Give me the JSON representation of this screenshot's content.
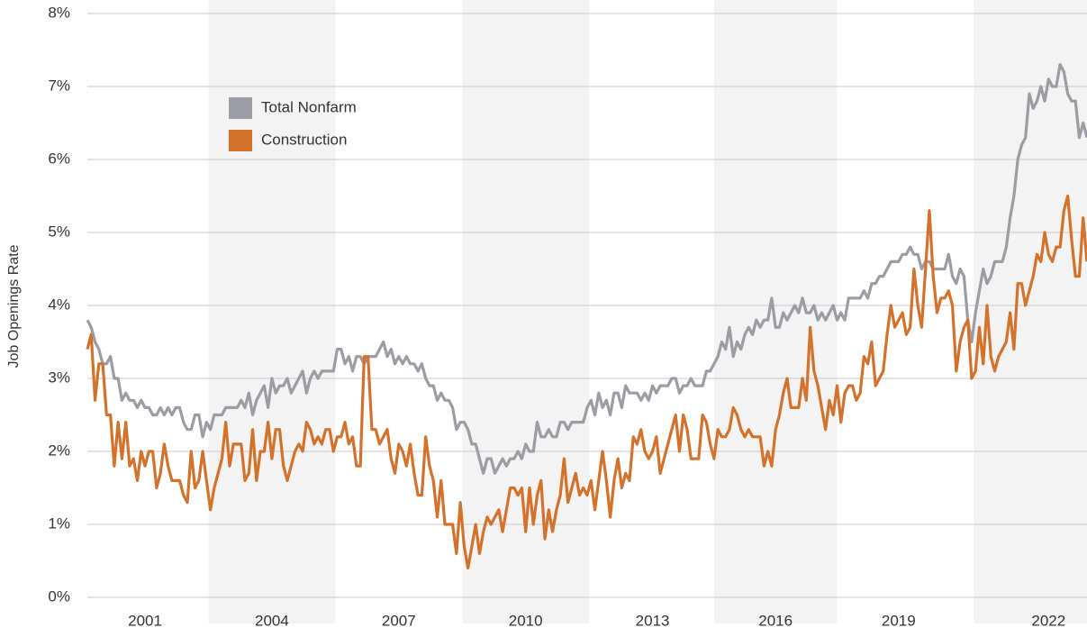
{
  "chart_data": {
    "type": "line",
    "ylabel": "Job Openings Rate",
    "categories": [
      null,
      null,
      null,
      null,
      null,
      null,
      null,
      null,
      null,
      null,
      null,
      null,
      null,
      null,
      null,
      "2001",
      null,
      null,
      null,
      null,
      null,
      null,
      null,
      null,
      null,
      null,
      null,
      null,
      null,
      null,
      null,
      null,
      null,
      null,
      null,
      null,
      null,
      null,
      null,
      null,
      null,
      null,
      null,
      null,
      null,
      null,
      null,
      null,
      "2004",
      null,
      null,
      null,
      null,
      null,
      null,
      null,
      null,
      null,
      null,
      null,
      null,
      null,
      null,
      null,
      null,
      null,
      null,
      null,
      null,
      null,
      null,
      null,
      null,
      null,
      null,
      null,
      null,
      null,
      null,
      null,
      null,
      "2007",
      null,
      null,
      null,
      null,
      null,
      null,
      null,
      null,
      null,
      null,
      null,
      null,
      null,
      null,
      null,
      null,
      null,
      null,
      null,
      null,
      null,
      null,
      null,
      null,
      null,
      null,
      null,
      null,
      null,
      null,
      null,
      null,
      "2010",
      null,
      null,
      null,
      null,
      null,
      null,
      null,
      null,
      null,
      null,
      null,
      null,
      null,
      null,
      null,
      null,
      null,
      null,
      null,
      null,
      null,
      null,
      null,
      null,
      null,
      null,
      null,
      null,
      null,
      null,
      null,
      null,
      "2013",
      null,
      null,
      null,
      null,
      null,
      null,
      null,
      null,
      null,
      null,
      null,
      null,
      null,
      null,
      null,
      null,
      null,
      null,
      null,
      null,
      null,
      null,
      null,
      null,
      null,
      null,
      null,
      null,
      null,
      null,
      null,
      "2016",
      null,
      null,
      null,
      null,
      null,
      null,
      null,
      null,
      null,
      null,
      null,
      null,
      null,
      null,
      null,
      null,
      null,
      null,
      null,
      null,
      null,
      null,
      null,
      null,
      null,
      null,
      null,
      null,
      null,
      null,
      null,
      "2019",
      null,
      null,
      null,
      null,
      null,
      null,
      null,
      null,
      null,
      null,
      null,
      null,
      null,
      null,
      null,
      null,
      null,
      null,
      null,
      null,
      null,
      null,
      null,
      null,
      null,
      null,
      null,
      null,
      null,
      null,
      null,
      null,
      null,
      null,
      null,
      null,
      null,
      null,
      "2022",
      null,
      null,
      null,
      null,
      null,
      null,
      null,
      null,
      null,
      null
    ],
    "series": [
      {
        "name": "Total Nonfarm",
        "color": "#9b9ca4",
        "values": [
          3.8,
          3.7,
          3.5,
          3.4,
          3.2,
          3.2,
          3.3,
          3.0,
          3.0,
          2.7,
          2.8,
          2.7,
          2.7,
          2.6,
          2.7,
          2.6,
          2.6,
          2.5,
          2.5,
          2.6,
          2.5,
          2.6,
          2.5,
          2.6,
          2.6,
          2.4,
          2.3,
          2.3,
          2.5,
          2.5,
          2.2,
          2.4,
          2.3,
          2.5,
          2.5,
          2.5,
          2.6,
          2.6,
          2.6,
          2.6,
          2.7,
          2.6,
          2.8,
          2.5,
          2.7,
          2.8,
          2.9,
          2.6,
          3.0,
          2.8,
          2.9,
          2.9,
          3.0,
          2.8,
          2.9,
          3.0,
          3.1,
          2.8,
          3.0,
          3.1,
          3.0,
          3.1,
          3.1,
          3.1,
          3.1,
          3.4,
          3.4,
          3.2,
          3.3,
          3.1,
          3.3,
          3.3,
          3.2,
          3.3,
          3.3,
          3.3,
          3.4,
          3.5,
          3.3,
          3.4,
          3.2,
          3.3,
          3.2,
          3.3,
          3.2,
          3.2,
          3.1,
          3.2,
          3.0,
          2.9,
          2.9,
          2.7,
          2.8,
          2.7,
          2.7,
          2.6,
          2.3,
          2.4,
          2.4,
          2.3,
          2.1,
          2.1,
          1.9,
          1.7,
          1.9,
          1.9,
          1.7,
          1.8,
          1.9,
          1.8,
          1.9,
          1.9,
          2.0,
          1.9,
          2.1,
          2.0,
          2.0,
          2.4,
          2.2,
          2.2,
          2.3,
          2.2,
          2.2,
          2.4,
          2.4,
          2.3,
          2.4,
          2.4,
          2.4,
          2.4,
          2.6,
          2.7,
          2.5,
          2.8,
          2.6,
          2.7,
          2.5,
          2.8,
          2.8,
          2.6,
          2.9,
          2.8,
          2.8,
          2.8,
          2.7,
          2.8,
          2.7,
          2.9,
          2.8,
          2.9,
          2.9,
          2.9,
          3.0,
          3.0,
          2.8,
          2.9,
          2.9,
          3.0,
          2.9,
          2.9,
          2.9,
          3.1,
          3.1,
          3.2,
          3.3,
          3.5,
          3.4,
          3.7,
          3.3,
          3.5,
          3.4,
          3.6,
          3.7,
          3.6,
          3.8,
          3.7,
          3.8,
          3.8,
          4.1,
          3.7,
          3.7,
          3.9,
          3.8,
          3.9,
          4.0,
          3.9,
          4.1,
          3.9,
          3.9,
          4.0,
          3.8,
          3.9,
          3.8,
          3.9,
          4.0,
          3.8,
          3.9,
          3.8,
          4.1,
          4.1,
          4.1,
          4.1,
          4.2,
          4.1,
          4.3,
          4.3,
          4.4,
          4.4,
          4.5,
          4.6,
          4.6,
          4.6,
          4.7,
          4.7,
          4.8,
          4.7,
          4.7,
          4.5,
          4.6,
          4.6,
          4.5,
          4.5,
          4.5,
          4.5,
          4.7,
          4.4,
          4.3,
          4.5,
          4.4,
          3.8,
          3.5,
          3.9,
          4.2,
          4.5,
          4.3,
          4.4,
          4.6,
          4.6,
          4.6,
          4.8,
          5.2,
          5.5,
          6.0,
          6.2,
          6.3,
          6.9,
          6.7,
          6.8,
          7.0,
          6.8,
          7.1,
          7.0,
          7.0,
          7.3,
          7.2,
          6.9,
          6.8,
          6.8,
          6.3,
          6.5,
          6.3
        ]
      },
      {
        "name": "Construction",
        "color": "#d4722b",
        "values": [
          3.4,
          3.6,
          2.7,
          3.2,
          3.2,
          2.5,
          2.5,
          1.8,
          2.4,
          1.9,
          2.4,
          1.8,
          1.9,
          1.6,
          2.0,
          1.8,
          2.0,
          2.0,
          1.5,
          1.7,
          2.1,
          1.8,
          1.6,
          1.6,
          1.6,
          1.4,
          1.3,
          2.0,
          1.5,
          1.6,
          2.0,
          1.6,
          1.2,
          1.5,
          1.7,
          1.9,
          2.4,
          1.8,
          2.1,
          2.1,
          2.1,
          1.6,
          1.7,
          2.3,
          1.6,
          2.0,
          2.0,
          2.4,
          1.9,
          2.3,
          2.3,
          1.8,
          1.6,
          1.8,
          2.0,
          2.1,
          2.0,
          2.4,
          2.3,
          2.1,
          2.2,
          2.1,
          2.3,
          2.3,
          2.0,
          2.2,
          2.2,
          2.4,
          2.1,
          2.2,
          1.8,
          1.8,
          3.3,
          3.3,
          2.3,
          2.3,
          2.1,
          2.2,
          2.3,
          1.9,
          1.7,
          2.1,
          2.0,
          1.8,
          2.1,
          1.7,
          1.4,
          1.4,
          2.2,
          1.8,
          1.6,
          1.1,
          1.6,
          1.0,
          1.0,
          1.0,
          0.6,
          1.3,
          0.7,
          0.4,
          0.7,
          1.0,
          0.6,
          0.9,
          1.1,
          1.0,
          1.1,
          1.2,
          0.9,
          1.2,
          1.5,
          1.5,
          1.4,
          1.5,
          0.9,
          1.5,
          1.0,
          1.4,
          1.6,
          0.8,
          1.2,
          0.9,
          1.2,
          1.4,
          1.9,
          1.3,
          1.5,
          1.7,
          1.4,
          1.5,
          1.4,
          1.6,
          1.2,
          1.6,
          2.0,
          1.6,
          1.1,
          1.6,
          1.9,
          1.5,
          1.7,
          1.6,
          2.2,
          2.1,
          2.3,
          2.0,
          1.9,
          2.0,
          2.2,
          1.7,
          1.9,
          2.1,
          2.3,
          2.5,
          2.0,
          2.5,
          2.3,
          1.9,
          1.9,
          1.9,
          2.5,
          2.4,
          2.1,
          1.9,
          2.3,
          2.2,
          2.2,
          2.3,
          2.6,
          2.5,
          2.3,
          2.2,
          2.3,
          2.2,
          2.2,
          2.2,
          1.8,
          2.0,
          1.8,
          2.3,
          2.5,
          2.8,
          3.0,
          2.6,
          2.6,
          2.6,
          3.0,
          2.7,
          3.7,
          3.1,
          2.9,
          2.6,
          2.3,
          2.7,
          2.5,
          2.9,
          2.4,
          2.8,
          2.9,
          2.9,
          2.7,
          2.8,
          3.3,
          3.2,
          3.5,
          2.9,
          3.0,
          3.1,
          3.6,
          4.0,
          3.7,
          3.8,
          3.9,
          3.6,
          3.7,
          4.5,
          4.0,
          3.7,
          4.5,
          5.3,
          4.4,
          3.9,
          4.1,
          4.1,
          4.2,
          4.0,
          3.1,
          3.5,
          3.7,
          3.8,
          3.0,
          3.1,
          3.7,
          3.2,
          4.0,
          3.3,
          3.1,
          3.3,
          3.4,
          3.5,
          3.9,
          3.4,
          4.3,
          4.3,
          4.0,
          4.2,
          4.4,
          4.7,
          4.6,
          5.0,
          4.7,
          4.6,
          4.8,
          4.8,
          5.3,
          5.5,
          4.9,
          4.4,
          4.4,
          5.2,
          4.6
        ]
      }
    ],
    "ylim": [
      0,
      8
    ],
    "yticks": [
      {
        "value": 0,
        "label": "0%"
      },
      {
        "value": 1,
        "label": "1%"
      },
      {
        "value": 2,
        "label": "2%"
      },
      {
        "value": 3,
        "label": "3%"
      },
      {
        "value": 4,
        "label": "4%"
      },
      {
        "value": 5,
        "label": "5%"
      },
      {
        "value": 6,
        "label": "6%"
      },
      {
        "value": 7,
        "label": "7%"
      },
      {
        "value": 8,
        "label": "8%"
      }
    ],
    "grid": true,
    "legend": "upper left"
  }
}
